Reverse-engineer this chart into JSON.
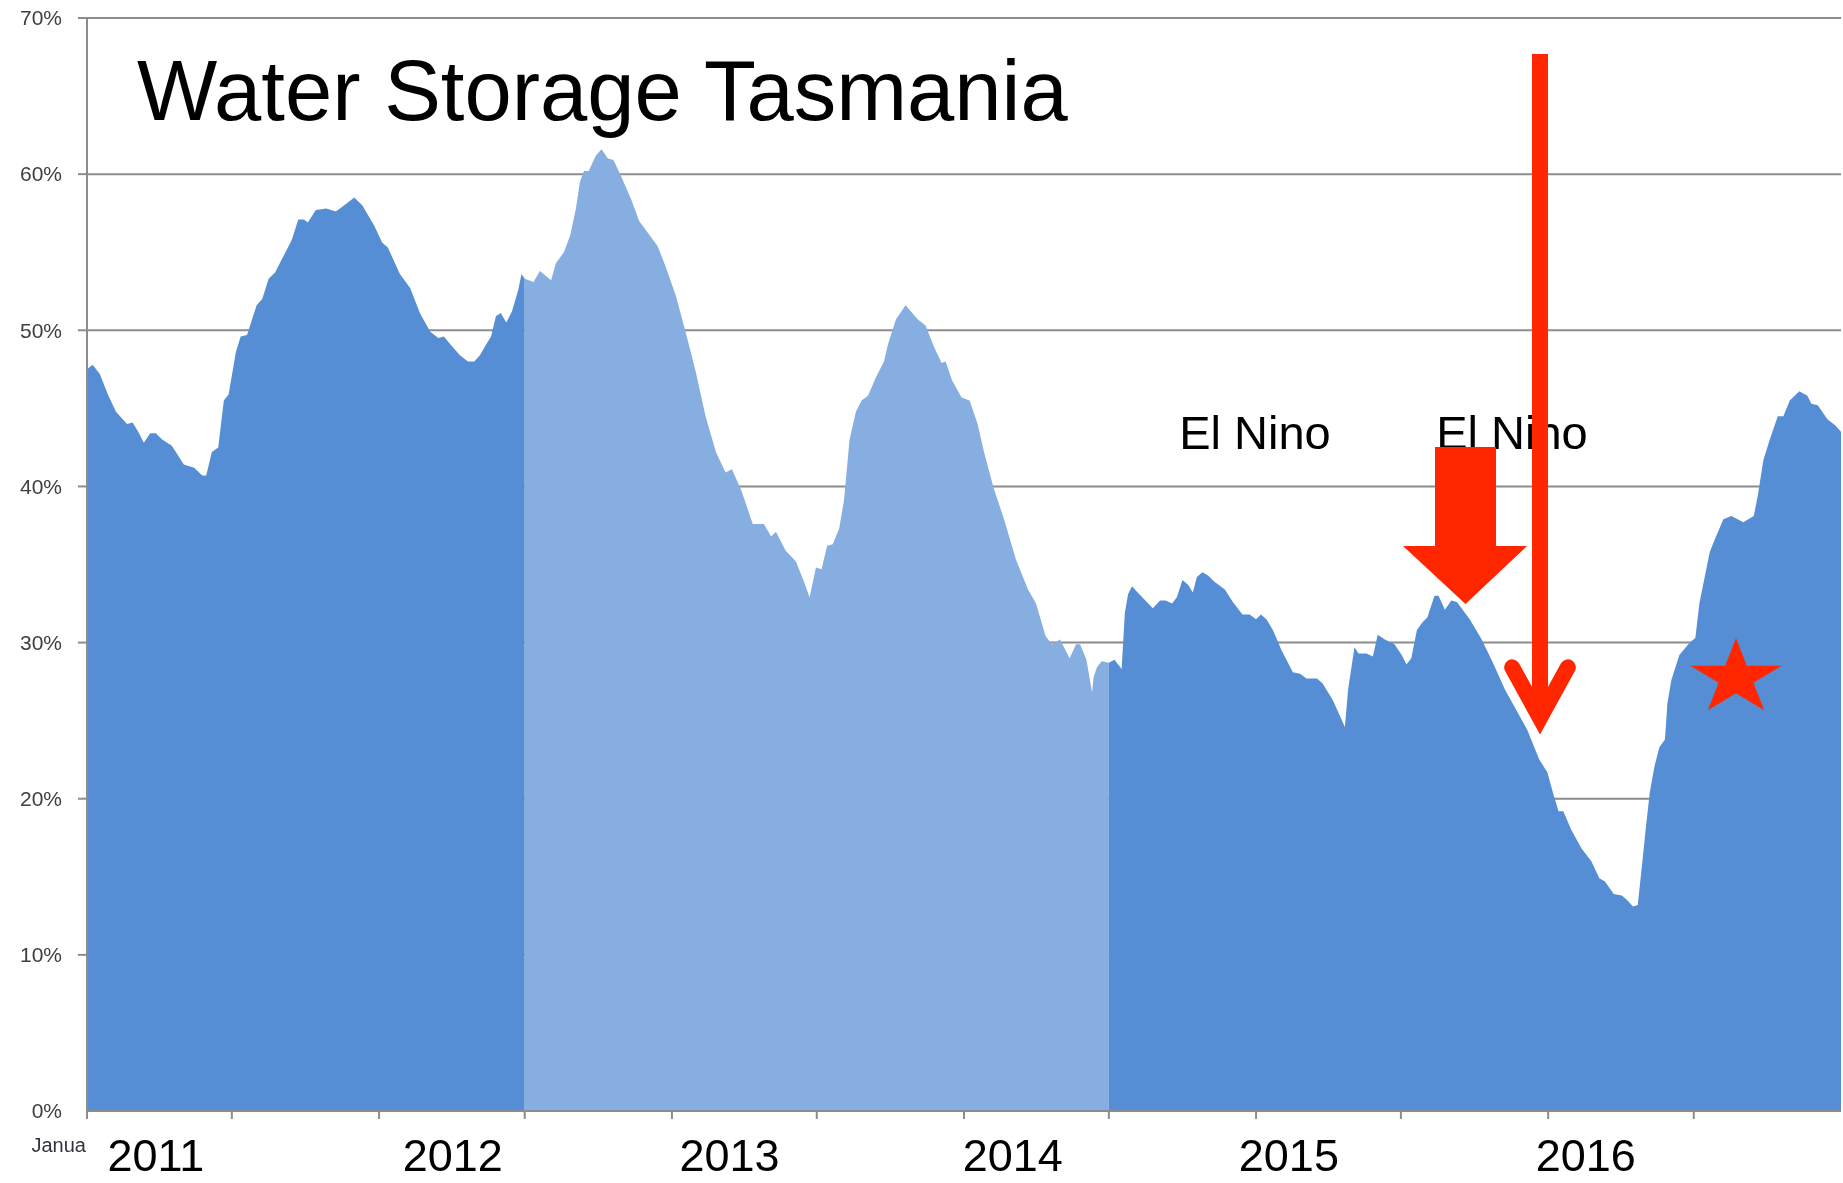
{
  "chart_data": {
    "type": "area",
    "title": "Water Storage Tasmania",
    "series": [
      {
        "color": "#558ed5",
        "x": [
          "2011-01-01",
          "2011-01-08",
          "2011-01-17",
          "2011-01-27",
          "2011-02-06",
          "2011-02-20",
          "2011-02-27",
          "2011-03-06",
          "2011-03-13",
          "2011-03-21",
          "2011-03-28",
          "2011-04-05",
          "2011-04-17",
          "2011-05-02",
          "2011-05-15",
          "2011-05-25",
          "2011-05-30",
          "2011-06-06",
          "2011-06-14",
          "2011-06-21",
          "2011-06-27",
          "2011-07-06",
          "2011-07-12",
          "2011-07-20",
          "2011-08-01",
          "2011-08-08",
          "2011-08-16",
          "2011-08-24",
          "2011-09-07",
          "2011-09-14",
          "2011-09-22",
          "2011-09-29",
          "2011-10-04",
          "2011-10-14",
          "2011-10-27",
          "2011-11-08",
          "2011-11-21",
          "2011-12-01",
          "2011-12-11",
          "2011-12-26",
          "2012-01-05",
          "2012-01-12",
          "2012-01-27",
          "2012-02-09",
          "2012-02-21",
          "2012-03-05",
          "2012-03-15",
          "2012-03-22",
          "2012-03-30",
          "2012-04-11",
          "2012-04-21",
          "2012-04-29",
          "2012-05-06",
          "2012-05-14",
          "2012-05-20",
          "2012-05-26",
          "2012-06-01",
          "2012-06-08",
          "2012-06-15",
          "2012-06-23",
          "2012-06-27",
          "2012-07-01"
        ],
        "values": [
          47.5,
          47.8,
          47.2,
          45.9,
          44.8,
          44.0,
          44.1,
          43.5,
          42.8,
          43.4,
          43.4,
          43.0,
          42.6,
          41.4,
          41.2,
          40.7,
          40.7,
          42.2,
          42.5,
          45.5,
          45.9,
          48.6,
          49.6,
          49.7,
          51.6,
          52.0,
          53.3,
          53.7,
          55.1,
          55.8,
          57.1,
          57.1,
          56.9,
          57.7,
          57.8,
          57.6,
          58.1,
          58.5,
          58.0,
          56.7,
          55.6,
          55.3,
          53.6,
          52.7,
          51.1,
          49.9,
          49.5,
          49.6,
          49.1,
          48.4,
          48.0,
          48.0,
          48.4,
          49.1,
          49.6,
          50.9,
          51.1,
          50.5,
          51.2,
          52.6,
          53.6,
          53.3
        ]
      },
      {
        "color": "#87aee0",
        "x": [
          "2012-07-01",
          "2012-07-12",
          "2012-07-20",
          "2012-08-03",
          "2012-08-09",
          "2012-08-19",
          "2012-08-27",
          "2012-09-03",
          "2012-09-08",
          "2012-09-13",
          "2012-09-19",
          "2012-09-28",
          "2012-10-05",
          "2012-10-13",
          "2012-10-20",
          "2012-10-30",
          "2012-11-11",
          "2012-11-21",
          "2012-12-14",
          "2012-12-24",
          "2013-01-06",
          "2013-01-18",
          "2013-01-31",
          "2013-02-12",
          "2013-02-25",
          "2013-03-09",
          "2013-03-17",
          "2013-03-29",
          "2013-04-12",
          "2013-04-26",
          "2013-05-05",
          "2013-05-11",
          "2013-05-23",
          "2013-06-05",
          "2013-06-15",
          "2013-06-22",
          "2013-06-30",
          "2013-07-07",
          "2013-07-14",
          "2013-07-21",
          "2013-07-29",
          "2013-08-04",
          "2013-08-11",
          "2013-08-19",
          "2013-08-26",
          "2013-09-03",
          "2013-09-13",
          "2013-09-23",
          "2013-09-28",
          "2013-10-08",
          "2013-10-20",
          "2013-11-04",
          "2013-11-14",
          "2013-11-24",
          "2013-12-04",
          "2013-12-09",
          "2013-12-17",
          "2013-12-29",
          "2014-01-08",
          "2014-01-18",
          "2014-01-26",
          "2014-02-07",
          "2014-02-20",
          "2014-03-07",
          "2014-03-22",
          "2014-04-01",
          "2014-04-13",
          "2014-04-21",
          "2014-05-01",
          "2014-05-13",
          "2014-05-21",
          "2014-05-26",
          "2014-06-03",
          "2014-06-10",
          "2014-06-12",
          "2014-06-16",
          "2014-06-22",
          "2014-07-01"
        ],
        "values": [
          53.3,
          53.1,
          53.8,
          53.2,
          54.3,
          55.0,
          56.1,
          57.8,
          59.5,
          60.2,
          60.2,
          61.2,
          61.6,
          61.0,
          60.9,
          59.8,
          58.4,
          57.0,
          55.4,
          54.1,
          52.2,
          49.9,
          47.3,
          44.5,
          42.2,
          40.9,
          41.1,
          39.7,
          37.6,
          37.6,
          36.8,
          37.1,
          35.9,
          35.2,
          33.9,
          32.9,
          34.8,
          34.7,
          36.2,
          36.3,
          37.3,
          39.1,
          43.0,
          44.8,
          45.5,
          45.8,
          47.0,
          48.0,
          49.1,
          50.7,
          51.6,
          50.7,
          50.3,
          49.0,
          47.9,
          48.0,
          46.8,
          45.7,
          45.5,
          44.0,
          42.2,
          39.9,
          37.9,
          35.3,
          33.4,
          32.5,
          30.4,
          29.9,
          30.2,
          29.0,
          29.9,
          29.9,
          28.9,
          26.8,
          27.8,
          28.4,
          28.8,
          28.7
        ]
      },
      {
        "color": "#558ed5",
        "x": [
          "2014-07-01",
          "2014-07-08",
          "2014-07-17",
          "2014-07-21",
          "2014-07-25",
          "2014-07-30",
          "2014-08-06",
          "2014-08-25",
          "2014-09-03",
          "2014-09-10",
          "2014-09-18",
          "2014-09-24",
          "2014-10-01",
          "2014-10-08",
          "2014-10-14",
          "2014-10-19",
          "2014-10-26",
          "2014-11-02",
          "2014-11-10",
          "2014-11-23",
          "2014-12-03",
          "2014-12-15",
          "2014-12-24",
          "2015-01-01",
          "2015-01-07",
          "2015-01-14",
          "2015-01-22",
          "2015-02-02",
          "2015-02-16",
          "2015-02-25",
          "2015-03-05",
          "2015-03-18",
          "2015-03-25",
          "2015-04-07",
          "2015-04-22",
          "2015-04-26",
          "2015-05-04",
          "2015-05-09",
          "2015-05-19",
          "2015-05-27",
          "2015-06-02",
          "2015-06-11",
          "2015-06-23",
          "2015-07-02",
          "2015-07-08",
          "2015-07-14",
          "2015-07-21",
          "2015-07-28",
          "2015-08-03",
          "2015-08-12",
          "2015-08-17",
          "2015-08-25",
          "2015-09-02",
          "2015-09-09",
          "2015-09-25",
          "2015-10-10",
          "2015-10-24",
          "2015-11-08",
          "2015-11-21",
          "2015-12-06",
          "2015-12-21",
          "2015-12-31",
          "2016-01-08",
          "2016-01-14",
          "2016-01-20",
          "2016-01-30",
          "2016-02-12",
          "2016-02-24",
          "2016-03-05",
          "2016-03-12",
          "2016-03-23",
          "2016-04-02",
          "2016-04-09",
          "2016-04-16",
          "2016-04-22",
          "2016-04-27",
          "2016-05-02",
          "2016-05-07",
          "2016-05-13",
          "2016-05-19",
          "2016-05-26",
          "2016-05-29",
          "2016-06-03",
          "2016-06-13",
          "2016-06-26",
          "2016-07-03",
          "2016-07-08",
          "2016-07-21",
          "2016-07-28",
          "2016-08-07",
          "2016-08-17",
          "2016-09-01",
          "2016-09-14",
          "2016-09-19",
          "2016-09-26",
          "2016-10-04",
          "2016-10-14",
          "2016-10-21",
          "2016-10-29",
          "2016-11-10",
          "2016-11-20",
          "2016-11-25",
          "2016-12-03",
          "2016-12-15",
          "2016-12-25",
          "2017-01-01"
        ],
        "values": [
          28.7,
          28.9,
          28.3,
          31.9,
          33.1,
          33.6,
          33.2,
          32.2,
          32.7,
          32.7,
          32.5,
          32.9,
          34.0,
          33.7,
          33.2,
          34.2,
          34.5,
          34.3,
          33.9,
          33.4,
          32.6,
          31.8,
          31.8,
          31.5,
          31.8,
          31.5,
          30.8,
          29.5,
          28.1,
          28.0,
          27.7,
          27.7,
          27.4,
          26.3,
          24.6,
          27.0,
          29.7,
          29.3,
          29.3,
          29.1,
          30.5,
          30.2,
          29.9,
          29.2,
          28.6,
          29.0,
          30.8,
          31.3,
          31.6,
          33.0,
          33.0,
          32.1,
          32.7,
          32.6,
          31.5,
          30.2,
          28.7,
          27.0,
          25.8,
          24.4,
          22.5,
          21.7,
          20.2,
          19.2,
          19.2,
          18.0,
          16.8,
          16.0,
          14.9,
          14.7,
          13.9,
          13.8,
          13.5,
          13.1,
          13.2,
          15.6,
          18.1,
          20.4,
          22.1,
          23.3,
          23.8,
          26.1,
          27.6,
          29.2,
          30.0,
          30.3,
          32.5,
          35.8,
          36.7,
          37.9,
          38.1,
          37.7,
          38.1,
          39.4,
          41.7,
          43.0,
          44.5,
          44.5,
          45.5,
          46.1,
          45.8,
          45.3,
          45.2,
          44.3,
          43.9,
          43.5
        ]
      }
    ],
    "xlim": [
      "2011-01-01",
      "2017-01-01"
    ],
    "xticks": [
      {
        "value": "2011-01-01",
        "label": null
      },
      {
        "value": "2011-03-28",
        "label": "2011"
      },
      {
        "value": "2011-07-01",
        "label": null
      },
      {
        "value": "2012-01-01",
        "label": null
      },
      {
        "value": "2012-04-02",
        "label": "2012"
      },
      {
        "value": "2012-07-01",
        "label": null
      },
      {
        "value": "2013-01-01",
        "label": null
      },
      {
        "value": "2013-03-14",
        "label": "2013"
      },
      {
        "value": "2013-07-01",
        "label": null
      },
      {
        "value": "2014-01-01",
        "label": null
      },
      {
        "value": "2014-03-03",
        "label": "2014"
      },
      {
        "value": "2014-07-01",
        "label": null
      },
      {
        "value": "2015-01-01",
        "label": null
      },
      {
        "value": "2015-02-11",
        "label": "2015"
      },
      {
        "value": "2015-07-01",
        "label": null
      },
      {
        "value": "2016-01-01",
        "label": null
      },
      {
        "value": "2016-02-17",
        "label": "2016"
      },
      {
        "value": "2016-07-01",
        "label": null
      }
    ],
    "ylim": [
      0,
      70
    ],
    "yticks": [
      {
        "value": 0,
        "label": "0%"
      },
      {
        "value": 10,
        "label": "10%"
      },
      {
        "value": 20,
        "label": "20%"
      },
      {
        "value": 30,
        "label": "30%"
      },
      {
        "value": 40,
        "label": "40%"
      },
      {
        "value": 50,
        "label": "50%"
      },
      {
        "value": 60,
        "label": "60%"
      },
      {
        "value": 70,
        "label": "70%"
      }
    ],
    "grid": "y",
    "annotations": [
      "El Nino",
      "El Nino",
      "Janua"
    ]
  }
}
